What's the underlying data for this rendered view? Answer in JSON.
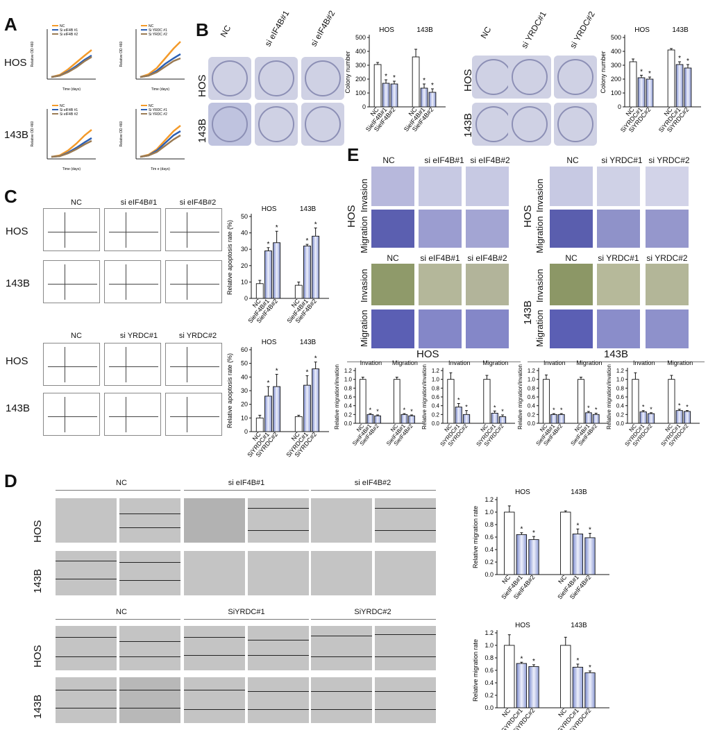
{
  "panels": {
    "A": "A",
    "B": "B",
    "C": "C",
    "D": "D",
    "E": "E"
  },
  "cell_lines": {
    "hos": "HOS",
    "b143": "143B"
  },
  "A": {
    "ylabel": "Relative OD 460",
    "xlabel": "Time (days)",
    "xlabel_alt": "Tim e (days)",
    "legend_eif": [
      "NC",
      "Si eIF4B #1",
      "Si eIF4B #2"
    ],
    "legend_yrdc": [
      "NC",
      "Si YRDC #1",
      "Si YRDC #2"
    ],
    "colors": [
      "#f39a2a",
      "#2b5fb4",
      "#9a7a52"
    ]
  },
  "B": {
    "cols_eif": [
      "NC",
      "si eIF4B#1",
      "si eIF4B#2"
    ],
    "cols_yrdc": [
      "NC",
      "si YRDC#1",
      "si YRDC#2"
    ],
    "ylabel": "Colony number"
  },
  "C": {
    "cols_eif": [
      "NC",
      "si eIF4B#1",
      "si eIF4B#2"
    ],
    "cols_yrdc": [
      "NC",
      "si YRDC#1",
      "si YRDC#2"
    ],
    "ylabel": "Relative apoptosis rate (%)"
  },
  "D": {
    "groups_eif": [
      "NC",
      "si eIF4B#1",
      "si eIF4B#2"
    ],
    "groups_yrdc": [
      "NC",
      "SiYRDC#1",
      "SiYRDC#2"
    ],
    "ylabel": "Relative migration rate"
  },
  "E": {
    "cols_eif": [
      "NC",
      "si eIF4B#1",
      "si eIF4B#2"
    ],
    "cols_yrdc": [
      "NC",
      "si YRDC#1",
      "si YRDC#2"
    ],
    "row_labels": [
      "Migration",
      "Invasion"
    ],
    "ylabel": "Relative migration/invation",
    "group_labels": [
      "Invation",
      "Migration"
    ]
  },
  "chart_data": [
    {
      "id": "B-eif",
      "type": "bar",
      "groups": [
        "HOS",
        "143B"
      ],
      "categories": [
        "NC",
        "SieIF4B#1",
        "SieIF4B#2"
      ],
      "values": [
        [
          305,
          170,
          165
        ],
        [
          360,
          135,
          105
        ]
      ],
      "errors": [
        [
          15,
          25,
          20
        ],
        [
          55,
          30,
          25
        ]
      ],
      "stars": [
        false,
        true,
        true
      ],
      "ylim": [
        0,
        500
      ],
      "yticks": [
        0,
        100,
        200,
        300,
        400,
        500
      ],
      "ylabel": "Colony number"
    },
    {
      "id": "B-yrdc",
      "type": "bar",
      "groups": [
        "HOS",
        "143B"
      ],
      "categories": [
        "NC",
        "SiYRDC#1",
        "SiYRDC#2"
      ],
      "values": [
        [
          325,
          210,
          200
        ],
        [
          410,
          305,
          280
        ]
      ],
      "errors": [
        [
          20,
          18,
          15
        ],
        [
          10,
          20,
          25
        ]
      ],
      "stars": [
        false,
        true,
        true
      ],
      "ylim": [
        0,
        500
      ],
      "yticks": [
        0,
        100,
        200,
        300,
        400,
        500
      ],
      "ylabel": "Colony number"
    },
    {
      "id": "C-eif",
      "type": "bar",
      "groups": [
        "HOS",
        "143B"
      ],
      "categories": [
        "NC",
        "SieIF4B#1",
        "SieIF4B#2"
      ],
      "values": [
        [
          9,
          29,
          34
        ],
        [
          8,
          32,
          38
        ]
      ],
      "errors": [
        [
          2,
          2,
          7
        ],
        [
          2,
          1,
          5
        ]
      ],
      "stars": [
        false,
        true,
        true
      ],
      "ylim": [
        0,
        50
      ],
      "yticks": [
        0,
        10,
        20,
        30,
        40,
        50
      ],
      "ylabel": "Relative apoptosis rate (%)"
    },
    {
      "id": "C-yrdc",
      "type": "bar",
      "groups": [
        "HOS",
        "143B"
      ],
      "categories": [
        "NC",
        "SiYRDC#1",
        "SiYRDC#2"
      ],
      "values": [
        [
          10,
          26,
          33
        ],
        [
          11,
          34,
          46
        ]
      ],
      "errors": [
        [
          2,
          7,
          9
        ],
        [
          1,
          7,
          5
        ]
      ],
      "stars": [
        false,
        true,
        true
      ],
      "ylim": [
        0,
        60
      ],
      "yticks": [
        0,
        10,
        20,
        30,
        40,
        50,
        60
      ],
      "ylabel": "Relative apoptosis rate (%)"
    },
    {
      "id": "D-eif",
      "type": "bar",
      "groups": [
        "HOS",
        "143B"
      ],
      "categories": [
        "NC",
        "SieIF4B#1",
        "SieIF4B#2"
      ],
      "values": [
        [
          1.0,
          0.64,
          0.56
        ],
        [
          1.0,
          0.65,
          0.59
        ]
      ],
      "errors": [
        [
          0.1,
          0.03,
          0.05
        ],
        [
          0.02,
          0.08,
          0.07
        ]
      ],
      "stars": [
        false,
        true,
        true
      ],
      "ylim": [
        0,
        1.2
      ],
      "yticks": [
        0,
        0.2,
        0.4,
        0.6,
        0.8,
        1.0,
        1.2
      ],
      "ylabel": "Relative migration rate"
    },
    {
      "id": "D-yrdc",
      "type": "bar",
      "groups": [
        "HOS",
        "143B"
      ],
      "categories": [
        "NC",
        "SiGYRDC#1",
        "SiYRDC#2"
      ],
      "values": [
        [
          1.0,
          0.71,
          0.66
        ],
        [
          1.0,
          0.65,
          0.56
        ]
      ],
      "errors": [
        [
          0.17,
          0.02,
          0.03
        ],
        [
          0.13,
          0.05,
          0.03
        ]
      ],
      "stars": [
        false,
        true,
        true
      ],
      "ylim": [
        0,
        1.2
      ],
      "yticks": [
        0,
        0.2,
        0.4,
        0.6,
        0.8,
        1.0,
        1.2
      ],
      "ylabel": "Relative migration rate"
    },
    {
      "id": "E-hos-eif",
      "type": "bar",
      "groups": [
        "Invation",
        "Migration"
      ],
      "categories": [
        "NC",
        "SieIF4B#1",
        "SieIF4B#2"
      ],
      "values": [
        [
          1.0,
          0.2,
          0.17
        ],
        [
          1.0,
          0.2,
          0.17
        ]
      ],
      "errors": [
        [
          0.05,
          0.02,
          0.02
        ],
        [
          0.05,
          0.02,
          0.02
        ]
      ],
      "stars": [
        false,
        true,
        true
      ],
      "ylim": [
        0,
        1.2
      ],
      "yticks": [
        0,
        0.2,
        0.4,
        0.6,
        0.8,
        1.0,
        1.2
      ],
      "ylabel": "Relative migration/invation"
    },
    {
      "id": "E-hos-yrdc",
      "type": "bar",
      "groups": [
        "Invation",
        "Migration"
      ],
      "categories": [
        "NC",
        "SiYRDC#1",
        "SiYRDC#2"
      ],
      "values": [
        [
          1.0,
          0.37,
          0.2
        ],
        [
          1.0,
          0.23,
          0.15
        ]
      ],
      "errors": [
        [
          0.15,
          0.08,
          0.09
        ],
        [
          0.09,
          0.05,
          0.04
        ]
      ],
      "stars": [
        false,
        true,
        true
      ],
      "ylim": [
        0,
        1.2
      ],
      "yticks": [
        0,
        0.2,
        0.4,
        0.6,
        0.8,
        1.0,
        1.2
      ],
      "ylabel": "Relative migration/invation"
    },
    {
      "id": "E-143b-eif",
      "type": "bar",
      "groups": [
        "Invation",
        "Migration"
      ],
      "categories": [
        "NC",
        "SieIF4B#1",
        "SieIF4B#2"
      ],
      "values": [
        [
          1.0,
          0.2,
          0.2
        ],
        [
          1.0,
          0.24,
          0.2
        ]
      ],
      "errors": [
        [
          0.1,
          0.02,
          0.02
        ],
        [
          0.05,
          0.03,
          0.03
        ]
      ],
      "stars": [
        false,
        true,
        true
      ],
      "ylim": [
        0,
        1.2
      ],
      "yticks": [
        0,
        0.2,
        0.4,
        0.6,
        0.8,
        1.0,
        1.2
      ],
      "ylabel": "Relative migration/invation"
    },
    {
      "id": "E-143b-yrdc",
      "type": "bar",
      "groups": [
        "Invation",
        "Migration"
      ],
      "categories": [
        "NC",
        "SiYRDC#1",
        "SiYRDC#2"
      ],
      "values": [
        [
          1.0,
          0.26,
          0.22
        ],
        [
          1.0,
          0.29,
          0.27
        ]
      ],
      "errors": [
        [
          0.15,
          0.03,
          0.02
        ],
        [
          0.09,
          0.03,
          0.02
        ]
      ],
      "stars": [
        false,
        true,
        true
      ],
      "ylim": [
        0,
        1.2
      ],
      "yticks": [
        0,
        0.2,
        0.4,
        0.6,
        0.8,
        1.0,
        1.2
      ],
      "ylabel": "Relative migration/invation"
    }
  ]
}
